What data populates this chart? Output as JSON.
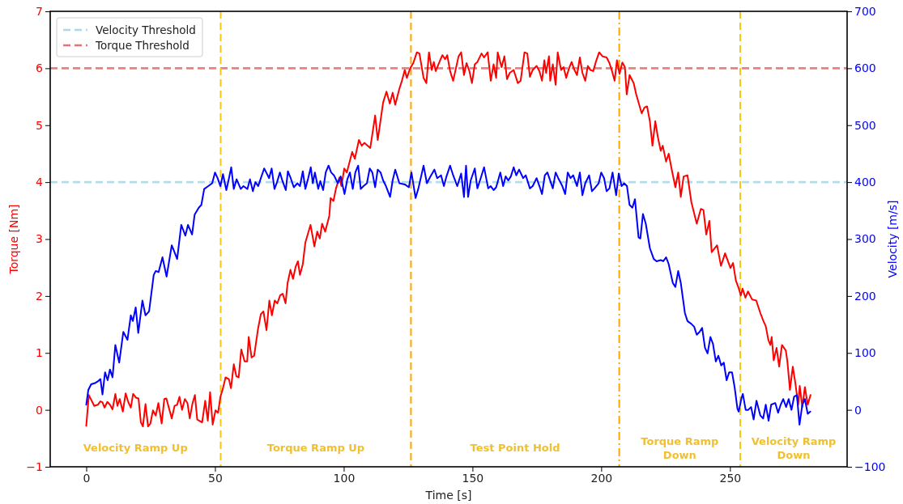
{
  "chart_data": {
    "type": "line",
    "xlabel": "Time [s]",
    "ylabel": "Torque [Nm]",
    "y2label": "Velocity [m/s]",
    "xlim": [
      -14,
      295.5
    ],
    "xticks": [
      0,
      50,
      100,
      150,
      200,
      250
    ],
    "ylim": [
      -1,
      7
    ],
    "yticks": [
      -1,
      0,
      1,
      2,
      3,
      4,
      5,
      6,
      7
    ],
    "y2lim": [
      -100,
      700
    ],
    "y2ticks": [
      -100,
      0,
      100,
      200,
      300,
      400,
      500,
      600,
      700
    ],
    "legend": "top left",
    "line_style": "solid",
    "marker": "none",
    "series": [
      {
        "color": "#ff0000",
        "x": [
          0,
          1,
          3.1,
          4.5,
          5.5,
          6.3,
          7.1,
          8.2,
          9.2,
          10.2,
          11.3,
          12.1,
          13,
          14.2,
          15.3,
          16.3,
          17.3,
          18.2,
          19.4,
          20.3,
          21.2,
          22,
          23,
          24,
          24.9,
          25.9,
          27,
          28,
          29.3,
          30.3,
          31.1,
          33.2,
          34.3,
          35.3,
          36.2,
          37.2,
          38.3,
          39.3,
          40.2,
          41.2,
          42.2,
          43.1,
          45,
          46.2,
          47.2,
          48.1,
          49.1,
          50.2,
          51.2,
          52.1,
          53.1,
          54.1,
          55.4,
          56.2,
          57.3,
          58.3,
          59.2,
          60.2,
          61.5,
          62.5,
          63.1,
          64.2,
          65.2,
          66.7,
          67.8,
          68.8,
          70,
          71.1,
          72.1,
          73.2,
          74.2,
          75.3,
          76.3,
          77.4,
          78.2,
          79.3,
          80.3,
          81.3,
          82.2,
          83,
          84.1,
          85.1,
          87.1,
          88.6,
          89.7,
          90.7,
          91.6,
          92.8,
          94.4,
          94.9,
          96,
          97,
          98.3,
          99.1,
          100.2,
          101.2,
          102.3,
          103.3,
          104.3,
          105.9,
          107,
          108,
          110.3,
          112.2,
          113.2,
          115.3,
          116.6,
          117.9,
          119,
          120,
          121.6,
          122.6,
          123.7,
          124.5,
          125.8,
          127,
          128.4,
          129.4,
          131,
          132.1,
          133.1,
          134.2,
          135,
          135.7,
          136.8,
          138.3,
          139.4,
          140.2,
          141.3,
          142.5,
          144.6,
          145.6,
          146.7,
          147.7,
          148.8,
          149.8,
          150.9,
          151.9,
          153.5,
          154.5,
          155.9,
          157.1,
          158.2,
          159.2,
          159.8,
          161.3,
          162.4,
          163.4,
          164.5,
          166,
          167.6,
          168.7,
          170.2,
          171.3,
          172.3,
          173.4,
          174.9,
          176,
          177,
          177.9,
          178.6,
          179.7,
          180.2,
          181.2,
          182.3,
          183.1,
          184.4,
          185.4,
          186.4,
          187.5,
          188.5,
          189.6,
          190.6,
          191.7,
          192.7,
          193.8,
          194.8,
          195.8,
          196.9,
          197.9,
          199.2,
          200.5,
          202.1,
          203.2,
          204.2,
          205.2,
          206.1,
          207.1,
          208.2,
          209.2,
          209.9,
          211,
          212.6,
          213.6,
          215.7,
          216.8,
          217.8,
          218.9,
          219.9,
          221,
          222,
          223.1,
          223.9,
          225.2,
          226.2,
          227.3,
          228.8,
          229.9,
          230.9,
          232,
          233.5,
          235,
          237.1,
          238.7,
          239.7,
          240.8,
          242,
          242.9,
          245,
          246.5,
          248.1,
          250.2,
          251.2,
          252.3,
          253.3,
          254.2,
          254.9,
          256,
          257,
          258.6,
          260.2,
          261.8,
          263,
          263.9,
          264.9,
          265.7,
          266.2,
          267,
          268.1,
          269.1,
          270.2,
          271.7,
          272.3,
          273.3,
          274.4,
          275.4,
          276.5,
          277.1,
          278.1,
          279.1,
          280.2,
          281.3
        ],
        "values": [
          -0.28,
          0.26,
          0.07,
          0.09,
          0.15,
          0.13,
          0.04,
          0.14,
          0.09,
          0.01,
          0.28,
          0.07,
          0.19,
          -0.03,
          0.29,
          0.14,
          0.04,
          0.28,
          0.21,
          0.2,
          -0.22,
          -0.29,
          0.1,
          -0.29,
          -0.24,
          -0.01,
          -0.1,
          0.12,
          -0.24,
          0.19,
          0.2,
          -0.15,
          0.07,
          0.09,
          0.23,
          0,
          0.19,
          0.12,
          -0.15,
          0.1,
          0.26,
          -0.17,
          -0.22,
          0.16,
          -0.19,
          0.31,
          -0.26,
          -0.01,
          -0.05,
          0.23,
          0.38,
          0.57,
          0.54,
          0.38,
          0.8,
          0.59,
          0.57,
          1.06,
          0.85,
          0.85,
          1.28,
          0.92,
          0.95,
          1.42,
          1.68,
          1.73,
          1.4,
          1.92,
          1.66,
          1.92,
          1.87,
          2.01,
          2.04,
          1.87,
          2.23,
          2.46,
          2.3,
          2.51,
          2.61,
          2.37,
          2.56,
          2.94,
          3.25,
          2.87,
          3.13,
          3.01,
          3.27,
          3.13,
          3.41,
          3.72,
          3.67,
          3.89,
          4.08,
          3.93,
          4.24,
          4.17,
          4.36,
          4.53,
          4.41,
          4.74,
          4.64,
          4.69,
          4.6,
          5.17,
          4.74,
          5.4,
          5.59,
          5.38,
          5.57,
          5.36,
          5.64,
          5.78,
          5.97,
          5.83,
          6,
          6.09,
          6.28,
          6.26,
          5.83,
          5.74,
          6.28,
          5.97,
          6.11,
          5.95,
          6.07,
          6.23,
          6.16,
          6.23,
          5.95,
          5.78,
          6.21,
          6.28,
          5.88,
          6.09,
          5.95,
          5.74,
          6.07,
          6.11,
          6.26,
          6.19,
          6.28,
          5.78,
          6.07,
          5.83,
          6.28,
          6.02,
          6.21,
          5.81,
          5.92,
          5.97,
          5.74,
          5.78,
          6.28,
          6.26,
          5.85,
          5.97,
          6.04,
          5.95,
          5.78,
          6.14,
          5.92,
          6.21,
          5.78,
          6.07,
          5.71,
          6.28,
          5.97,
          6.02,
          5.83,
          6,
          6.11,
          5.97,
          5.88,
          6.19,
          5.92,
          5.78,
          6.04,
          5.97,
          5.95,
          6.11,
          6.28,
          6.21,
          6.19,
          6.09,
          5.95,
          5.78,
          6.14,
          5.9,
          6.1,
          6.02,
          5.54,
          5.88,
          5.74,
          5.54,
          5.21,
          5.31,
          5.33,
          5.07,
          4.64,
          5.07,
          4.79,
          4.55,
          4.64,
          4.36,
          4.5,
          4.24,
          3.91,
          4.17,
          3.74,
          4.1,
          4.12,
          3.65,
          3.27,
          3.53,
          3.51,
          3.08,
          3.32,
          2.77,
          2.89,
          2.53,
          2.75,
          2.49,
          2.58,
          2.27,
          2.15,
          2.01,
          2.13,
          1.97,
          2.08,
          1.94,
          1.92,
          1.7,
          1.56,
          1.47,
          1.23,
          1.14,
          1.28,
          0.87,
          1.09,
          0.76,
          1.14,
          1.04,
          0.85,
          0.35,
          0.76,
          0.47,
          0.09,
          0.42,
          0.05,
          0.4,
          0.09,
          0.26
        ]
      },
      {
        "axis": "y2",
        "color": "#0000ff",
        "x": [
          0,
          0.8,
          1.9,
          3.4,
          4.5,
          5.5,
          6.3,
          7.3,
          8.3,
          9.2,
          10.2,
          11.3,
          12.8,
          14.4,
          16,
          17.3,
          18.1,
          19.2,
          20.2,
          21.8,
          23,
          24.4,
          26.2,
          27,
          28.1,
          29.6,
          31.2,
          33.2,
          35.3,
          36.9,
          38.5,
          39.5,
          41.1,
          42.1,
          43.7,
          44.7,
          45.8,
          47.4,
          48.9,
          50,
          51,
          52.1,
          53.1,
          54.4,
          55.2,
          56.3,
          57.3,
          58.4,
          60,
          61,
          62.6,
          63.6,
          64.7,
          65.7,
          66.8,
          67.8,
          69.1,
          69.9,
          71,
          72,
          73.1,
          74.1,
          75.2,
          76.2,
          77.5,
          78.3,
          79.4,
          80.6,
          82,
          83,
          84.1,
          85.1,
          86.2,
          87.2,
          88,
          88.8,
          90.1,
          90.9,
          92,
          93,
          94.1,
          95.1,
          96.2,
          97.7,
          98.8,
          100.3,
          101.4,
          102.4,
          103.5,
          104.5,
          105.6,
          106.6,
          107.7,
          109,
          110.1,
          111.1,
          112.2,
          113.2,
          114.3,
          115.3,
          116.4,
          118,
          119,
          120,
          121.6,
          123.7,
          125.3,
          126.3,
          127.9,
          129,
          131,
          132.3,
          133.7,
          135.2,
          136.3,
          137.8,
          138.9,
          139.9,
          141.3,
          142.5,
          144.1,
          145.6,
          146.7,
          147.5,
          148.3,
          149.3,
          150.9,
          151.9,
          153.2,
          154.5,
          156.1,
          157.1,
          158.2,
          159.2,
          160.8,
          161.9,
          162.9,
          163.9,
          164.9,
          166,
          167,
          168.1,
          169.7,
          170.7,
          172.3,
          173.4,
          174.9,
          176,
          177,
          178.1,
          179.1,
          181.2,
          182.3,
          183.3,
          184.9,
          186,
          187,
          188.1,
          189.1,
          190.6,
          191.7,
          192.7,
          193.8,
          195.3,
          196.4,
          197.4,
          199,
          200,
          201.1,
          202.1,
          203.2,
          204.4,
          205.8,
          206.8,
          207.9,
          208.9,
          210,
          211,
          212.1,
          213.1,
          214.5,
          215.2,
          216.2,
          217.3,
          218.9,
          220.4,
          221.5,
          223.1,
          224.1,
          225.2,
          226.2,
          227.8,
          228.8,
          229.9,
          230.9,
          232.5,
          233.5,
          235,
          236.1,
          237.1,
          238.2,
          239.2,
          240.3,
          241.3,
          242.4,
          243.4,
          244.5,
          245.5,
          246.6,
          247.6,
          248.7,
          249.7,
          250.8,
          251.8,
          252.9,
          253.4,
          254.5,
          255,
          256.1,
          257.1,
          258.2,
          259.2,
          260.3,
          261.8,
          262.9,
          263.9,
          265,
          266,
          267.6,
          268.7,
          269.7,
          270.7,
          271.8,
          272.8,
          273.9,
          274.9,
          276,
          277,
          278.1,
          279.1,
          280.2,
          281.2
        ],
        "values": [
          9,
          35,
          45,
          47,
          50,
          54,
          27,
          66,
          52,
          71,
          57,
          114,
          83,
          137,
          123,
          166,
          156,
          180,
          135,
          192,
          166,
          173,
          237,
          244,
          242,
          268,
          234,
          289,
          265,
          325,
          306,
          325,
          308,
          343,
          355,
          360,
          388,
          393,
          398,
          417,
          407,
          393,
          414,
          386,
          402,
          426,
          388,
          405,
          388,
          393,
          388,
          405,
          384,
          400,
          393,
          407,
          424,
          417,
          407,
          424,
          388,
          400,
          417,
          402,
          386,
          419,
          407,
          391,
          398,
          393,
          419,
          388,
          407,
          426,
          398,
          417,
          388,
          402,
          386,
          417,
          429,
          417,
          412,
          398,
          410,
          379,
          405,
          417,
          388,
          417,
          429,
          388,
          393,
          398,
          424,
          417,
          391,
          422,
          417,
          403,
          393,
          374,
          403,
          422,
          398,
          396,
          391,
          417,
          372,
          389,
          429,
          398,
          410,
          422,
          407,
          412,
          393,
          410,
          429,
          412,
          393,
          415,
          374,
          429,
          374,
          403,
          424,
          389,
          407,
          426,
          389,
          393,
          386,
          391,
          417,
          393,
          410,
          403,
          410,
          426,
          412,
          422,
          407,
          412,
          389,
          393,
          407,
          393,
          379,
          412,
          417,
          389,
          417,
          407,
          393,
          379,
          417,
          407,
          412,
          393,
          417,
          377,
          398,
          412,
          384,
          389,
          398,
          417,
          407,
          384,
          389,
          417,
          377,
          415,
          393,
          398,
          393,
          360,
          355,
          370,
          303,
          301,
          344,
          327,
          284,
          265,
          261,
          263,
          261,
          268,
          256,
          223,
          216,
          244,
          223,
          170,
          156,
          151,
          146,
          132,
          137,
          144,
          109,
          99,
          128,
          116,
          85,
          95,
          78,
          83,
          52,
          66,
          66,
          40,
          2,
          -3,
          21,
          28,
          0,
          0,
          5,
          -17,
          16,
          -10,
          -15,
          9,
          -19,
          9,
          12,
          -5,
          9,
          19,
          5,
          19,
          0,
          23,
          26,
          -26,
          9,
          19,
          -7,
          -3
        ]
      }
    ],
    "ref_lines": [
      {
        "axis": "y2",
        "value": 400,
        "label": "Velocity Threshold",
        "color": "#add8e6",
        "line_style": "dashed"
      },
      {
        "axis": "y",
        "value": 6,
        "label": "Torque Threshold",
        "color": "#e57373",
        "line_style": "dashed"
      },
      {
        "axis": "x",
        "value": 52.2,
        "color": "#f5c518",
        "line_style": "dashed"
      },
      {
        "axis": "x",
        "value": 126.1,
        "color": "#ffa500",
        "line_style": "dashed"
      },
      {
        "axis": "x",
        "value": 207,
        "color": "#ffa500",
        "line_style": "dashdot"
      },
      {
        "axis": "x",
        "value": 254,
        "color": "#f5c518",
        "line_style": "dashed"
      }
    ],
    "annotations": [
      "Velocity Ramp Up",
      "Torque Ramp Up",
      "Test Point Hold",
      "Torque Ramp\nDown",
      "Velocity Ramp\nDown"
    ]
  }
}
